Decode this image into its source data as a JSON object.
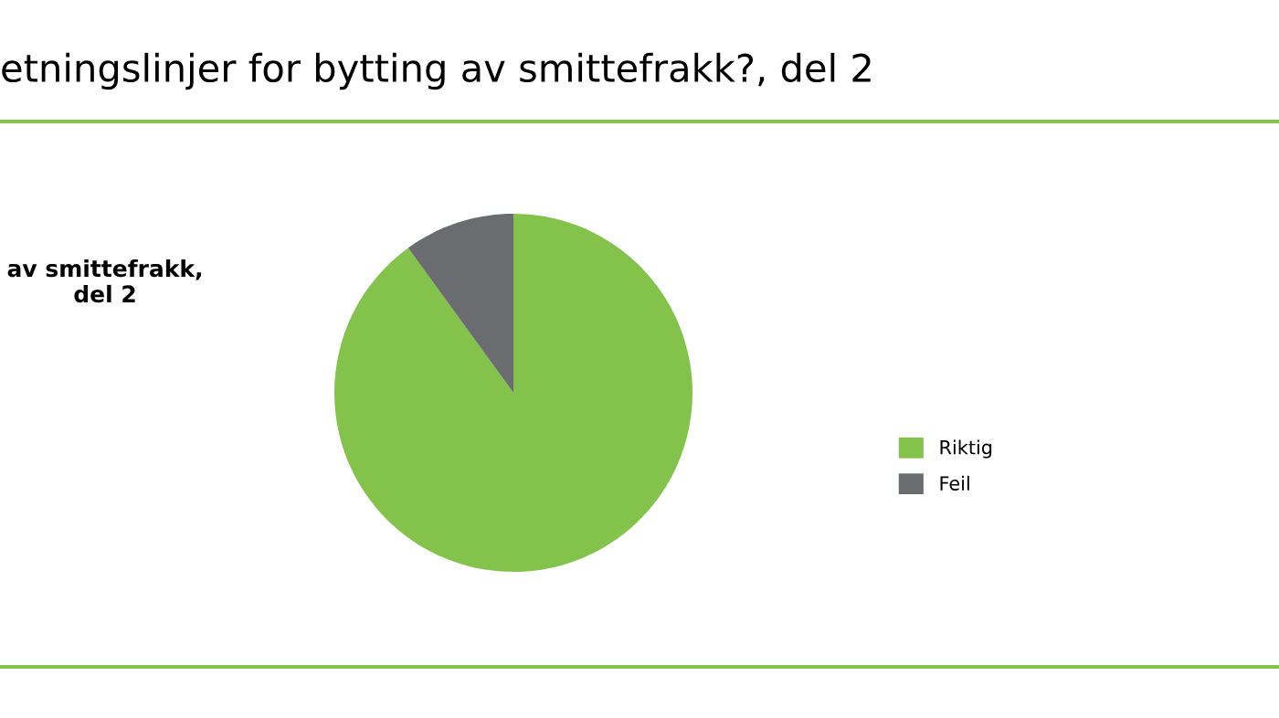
{
  "chart_data": {
    "type": "pie",
    "title": "etningslinjer for bytting av smittefrakk?, del 2",
    "subtitle": "av smittefrakk,\ndel 2",
    "categories": [
      "Riktig",
      "Feil"
    ],
    "values": [
      90,
      10
    ],
    "colors": [
      "#83c34b",
      "#6b6c70"
    ],
    "legend": "right"
  }
}
